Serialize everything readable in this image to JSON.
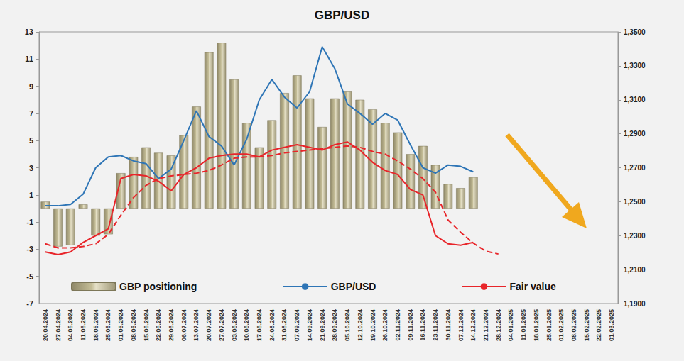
{
  "chart_data": {
    "type": "bar",
    "title": "GBP/USD",
    "categories": [
      "20.04.2024",
      "27.04.2024",
      "04.05.2024",
      "11.05.2024",
      "18.05.2024",
      "25.05.2024",
      "01.06.2024",
      "08.06.2024",
      "15.06.2024",
      "22.06.2024",
      "29.06.2024",
      "06.07.2024",
      "13.07.2024",
      "20.07.2024",
      "27.07.2024",
      "03.08.2024",
      "10.08.2024",
      "17.08.2024",
      "24.08.2024",
      "31.08.2024",
      "07.09.2024",
      "14.09.2024",
      "21.09.2024",
      "28.09.2024",
      "05.10.2024",
      "12.10.2024",
      "19.10.2024",
      "26.10.2024",
      "02.11.2024",
      "09.11.2024",
      "16.11.2024",
      "23.11.2024",
      "30.11.2024",
      "07.12.2024",
      "14.12.2024",
      "21.12.2024",
      "28.12.2024",
      "04.01.2025",
      "11.01.2025",
      "18.01.2025",
      "25.01.2025",
      "01.02.2025",
      "08.02.2025",
      "15.02.2025",
      "22.02.2025",
      "01.03.2025"
    ],
    "series": [
      {
        "name": "GBP positioning",
        "type": "bar",
        "color": "#c4bd97",
        "values": [
          0.5,
          -2.8,
          -2.7,
          0.3,
          -2.0,
          -1.9,
          2.6,
          3.8,
          4.5,
          4.1,
          3.9,
          5.4,
          7.5,
          11.5,
          12.2,
          9.5,
          6.3,
          4.5,
          6.5,
          8.5,
          9.8,
          8.1,
          6.0,
          8.1,
          8.6,
          8.0,
          7.3,
          6.3,
          5.6,
          4.0,
          4.6,
          3.2,
          1.8,
          1.5,
          2.3,
          null,
          null,
          null,
          null,
          null,
          null,
          null,
          null,
          null,
          null,
          null
        ]
      },
      {
        "name": "GBP/USD",
        "type": "line",
        "axis": "y2",
        "color": "#2e75b6",
        "values": [
          1.2476,
          1.2476,
          1.2484,
          1.2544,
          1.27,
          1.2764,
          1.2772,
          1.274,
          1.2724,
          1.2636,
          1.2692,
          1.286,
          1.3036,
          1.2884,
          1.2828,
          1.2716,
          1.2868,
          1.31,
          1.322,
          1.3116,
          1.3052,
          1.3148,
          1.3412,
          1.3284,
          1.3076,
          1.302,
          1.2956,
          1.302,
          1.298,
          1.2836,
          1.27,
          1.2668,
          1.2716,
          1.2708,
          1.2676,
          null,
          null,
          null,
          null,
          null,
          null,
          null,
          null,
          null,
          null,
          null
        ]
      },
      {
        "name": "Fair value",
        "type": "line",
        "axis": "y2",
        "color": "#e8252a",
        "values": [
          1.2204,
          1.2188,
          1.2204,
          1.226,
          1.23,
          1.234,
          1.2636,
          1.266,
          1.2652,
          1.262,
          1.2564,
          1.266,
          1.27,
          1.2756,
          1.2772,
          1.278,
          1.278,
          1.2764,
          1.2804,
          1.282,
          1.2836,
          1.282,
          1.2804,
          1.2836,
          1.2852,
          1.2804,
          1.2732,
          1.2684,
          1.266,
          1.2572,
          1.254,
          1.23,
          1.2252,
          1.2244,
          1.226,
          null,
          null,
          null,
          null,
          null,
          null,
          null,
          null,
          null,
          null,
          null
        ]
      },
      {
        "type": "line",
        "axis": "y2",
        "color": "#e8252a",
        "line_style": "dashed",
        "values": [
          1.2252,
          1.2228,
          1.2228,
          1.2236,
          1.2252,
          1.2308,
          1.242,
          1.2524,
          1.2596,
          1.2636,
          1.2652,
          1.266,
          1.2668,
          1.2684,
          1.2716,
          1.2756,
          1.2764,
          1.2764,
          1.2772,
          1.2788,
          1.2796,
          1.2804,
          1.2812,
          1.282,
          1.2828,
          1.282,
          1.2796,
          1.278,
          1.274,
          1.2692,
          1.2636,
          1.2556,
          1.2392,
          1.232,
          1.2256,
          1.2208,
          1.2192,
          null,
          null,
          null,
          null,
          null,
          null,
          null,
          null,
          null
        ]
      }
    ],
    "ylim": [
      -7,
      13
    ],
    "yticks": [
      -7,
      -5,
      -3,
      -1,
      1,
      3,
      5,
      7,
      9,
      11,
      13
    ],
    "y2lim": [
      1.19,
      1.35
    ],
    "y2ticks": [
      {
        "value": 1.19,
        "label": "1,1900"
      },
      {
        "value": 1.21,
        "label": "1,2100"
      },
      {
        "value": 1.23,
        "label": "1,2300"
      },
      {
        "value": 1.25,
        "label": "1,2500"
      },
      {
        "value": 1.27,
        "label": "1,2700"
      },
      {
        "value": 1.29,
        "label": "1,2900"
      },
      {
        "value": 1.31,
        "label": "1,3100"
      },
      {
        "value": 1.33,
        "label": "1,3300"
      },
      {
        "value": 1.35,
        "label": "1,3500"
      }
    ],
    "grid": false,
    "legend": "bottom"
  }
}
